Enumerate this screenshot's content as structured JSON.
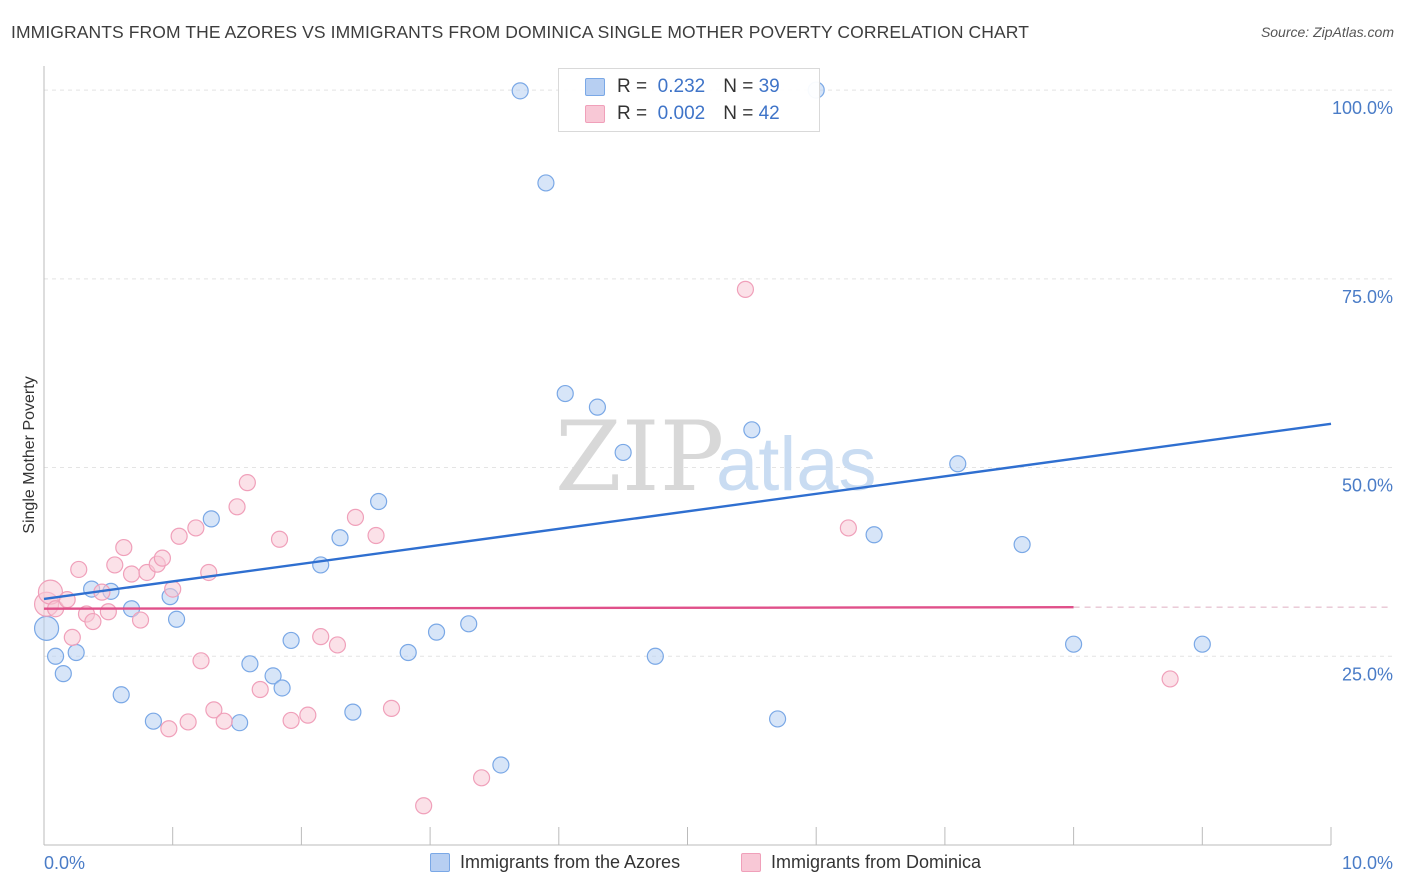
{
  "title": "IMMIGRANTS FROM THE AZORES VS IMMIGRANTS FROM DOMINICA SINGLE MOTHER POVERTY CORRELATION CHART",
  "source": "Source: ZipAtlas.com",
  "watermark": {
    "part1": "ZIP",
    "part2": "atlas"
  },
  "legend": {
    "r_label": "R =",
    "n_label": "N =",
    "items": [
      {
        "r": "0.232",
        "n": "39"
      },
      {
        "r": "0.002",
        "n": "42"
      }
    ]
  },
  "chart_data": {
    "type": "scatter",
    "title": "IMMIGRANTS FROM THE AZORES VS IMMIGRANTS FROM DOMINICA SINGLE MOTHER POVERTY CORRELATION CHART",
    "xlabel": "",
    "ylabel": "Single Mother Poverty",
    "xlim": [
      0,
      10
    ],
    "ylim": [
      0,
      102
    ],
    "x_tick_labels": [
      "0.0%",
      "10.0%"
    ],
    "y_tick_labels": [
      "100.0%",
      "75.0%",
      "50.0%",
      "25.0%"
    ],
    "y_ticks": [
      100,
      75,
      50,
      25
    ],
    "series": [
      {
        "name": "Immigrants from the Azores",
        "color": "#7aa8e6",
        "fill": "#b7cff2",
        "line_color": "#2f6fd0",
        "trend": {
          "x": [
            0,
            10
          ],
          "y": [
            32.6,
            55.8
          ]
        },
        "points": [
          [
            0.02,
            28.7
          ],
          [
            0.09,
            25.0
          ],
          [
            0.15,
            22.7
          ],
          [
            0.25,
            25.5
          ],
          [
            0.37,
            33.9
          ],
          [
            0.52,
            33.6
          ],
          [
            0.6,
            19.9
          ],
          [
            0.68,
            31.3
          ],
          [
            0.85,
            16.4
          ],
          [
            0.98,
            32.9
          ],
          [
            1.03,
            29.9
          ],
          [
            1.3,
            43.2
          ],
          [
            1.52,
            16.2
          ],
          [
            1.6,
            24.0
          ],
          [
            1.78,
            22.4
          ],
          [
            1.85,
            20.8
          ],
          [
            1.92,
            27.1
          ],
          [
            2.15,
            37.1
          ],
          [
            2.3,
            40.7
          ],
          [
            2.4,
            17.6
          ],
          [
            2.6,
            45.5
          ],
          [
            2.83,
            25.5
          ],
          [
            3.05,
            28.2
          ],
          [
            3.3,
            29.3
          ],
          [
            3.55,
            10.6
          ],
          [
            3.7,
            99.9
          ],
          [
            3.9,
            87.7
          ],
          [
            4.05,
            59.8
          ],
          [
            4.3,
            58.0
          ],
          [
            4.5,
            52.0
          ],
          [
            4.75,
            25.0
          ],
          [
            5.5,
            55.0
          ],
          [
            5.7,
            16.7
          ],
          [
            6.0,
            100.0
          ],
          [
            6.45,
            41.1
          ],
          [
            7.1,
            50.5
          ],
          [
            7.6,
            39.8
          ],
          [
            8.0,
            26.6
          ],
          [
            9.0,
            26.6
          ]
        ]
      },
      {
        "name": "Immigrants from Dominica",
        "color": "#f0a0ba",
        "fill": "#f8c8d6",
        "line_color": "#e0508a",
        "trend": {
          "x": [
            0,
            8.0
          ],
          "y": [
            31.3,
            31.5
          ]
        },
        "points": [
          [
            0.02,
            31.9
          ],
          [
            0.05,
            33.5
          ],
          [
            0.09,
            31.3
          ],
          [
            0.18,
            32.5
          ],
          [
            0.22,
            27.5
          ],
          [
            0.27,
            36.5
          ],
          [
            0.33,
            30.6
          ],
          [
            0.38,
            29.6
          ],
          [
            0.45,
            33.5
          ],
          [
            0.5,
            30.9
          ],
          [
            0.55,
            37.1
          ],
          [
            0.62,
            39.4
          ],
          [
            0.68,
            35.9
          ],
          [
            0.75,
            29.8
          ],
          [
            0.8,
            36.1
          ],
          [
            0.88,
            37.2
          ],
          [
            0.92,
            38.0
          ],
          [
            0.97,
            15.4
          ],
          [
            1.0,
            33.9
          ],
          [
            1.05,
            40.9
          ],
          [
            1.12,
            16.3
          ],
          [
            1.18,
            42.0
          ],
          [
            1.22,
            24.4
          ],
          [
            1.28,
            36.1
          ],
          [
            1.32,
            17.9
          ],
          [
            1.4,
            16.4
          ],
          [
            1.5,
            44.8
          ],
          [
            1.58,
            48.0
          ],
          [
            1.68,
            20.6
          ],
          [
            1.83,
            40.5
          ],
          [
            1.92,
            16.5
          ],
          [
            2.05,
            17.2
          ],
          [
            2.15,
            27.6
          ],
          [
            2.28,
            26.5
          ],
          [
            2.42,
            43.4
          ],
          [
            2.58,
            41.0
          ],
          [
            2.7,
            18.1
          ],
          [
            2.95,
            5.2
          ],
          [
            3.4,
            8.9
          ],
          [
            5.45,
            73.6
          ],
          [
            6.25,
            42.0
          ],
          [
            8.75,
            22.0
          ]
        ]
      }
    ]
  }
}
